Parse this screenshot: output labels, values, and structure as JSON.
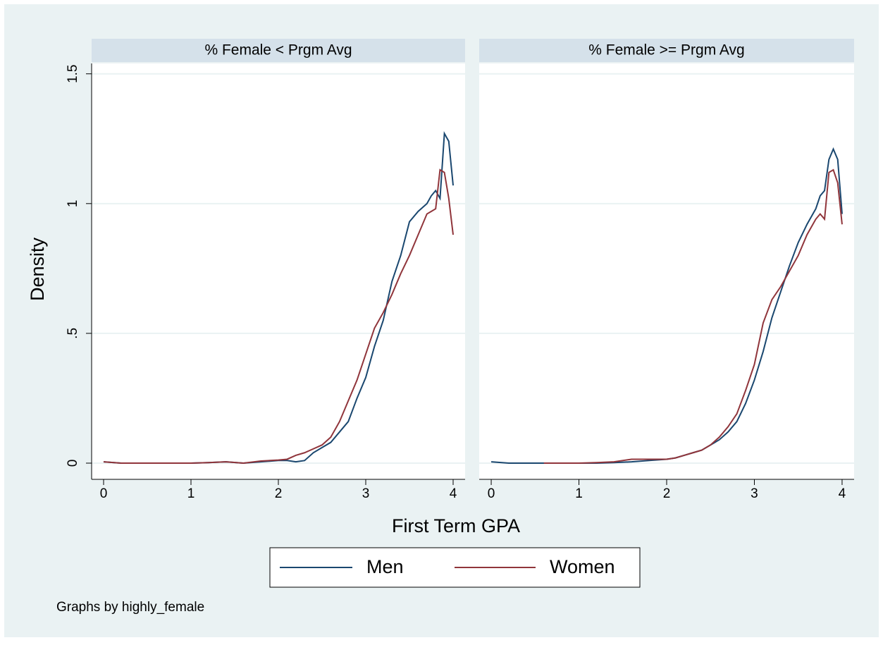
{
  "chart_data": [
    {
      "type": "line",
      "title": "% Female < Prgm Avg",
      "x": [
        0,
        0.2,
        0.4,
        0.6,
        0.8,
        1,
        1.2,
        1.4,
        1.6,
        1.8,
        2,
        2.1,
        2.2,
        2.3,
        2.4,
        2.5,
        2.6,
        2.7,
        2.8,
        2.9,
        3,
        3.1,
        3.2,
        3.3,
        3.4,
        3.5,
        3.6,
        3.7,
        3.75,
        3.8,
        3.85,
        3.9,
        3.95,
        4
      ],
      "series": [
        {
          "name": "Men",
          "color": "#1a476f",
          "values": [
            0.005,
            0,
            0,
            0,
            0,
            0,
            0.002,
            0.005,
            0,
            0.005,
            0.01,
            0.01,
            0.005,
            0.01,
            0.04,
            0.06,
            0.08,
            0.12,
            0.16,
            0.25,
            0.33,
            0.45,
            0.55,
            0.7,
            0.8,
            0.93,
            0.97,
            1.0,
            1.03,
            1.05,
            1.02,
            1.27,
            1.24,
            1.07
          ]
        },
        {
          "name": "Women",
          "color": "#90353b",
          "values": [
            0.005,
            0,
            0,
            0,
            0,
            0,
            0.002,
            0.005,
            0,
            0.008,
            0.012,
            0.015,
            0.03,
            0.04,
            0.055,
            0.07,
            0.1,
            0.16,
            0.24,
            0.32,
            0.42,
            0.52,
            0.58,
            0.65,
            0.73,
            0.8,
            0.88,
            0.96,
            0.97,
            0.98,
            1.13,
            1.12,
            1.02,
            0.88
          ]
        }
      ],
      "xlim": [
        -0.137,
        4.137
      ],
      "xticks": [
        0,
        1,
        2,
        3,
        4
      ],
      "ylim": [
        -0.0625,
        1.54
      ],
      "yticks": [
        0,
        {
          "value": 0.5,
          "label": ".5"
        },
        1,
        1.5
      ],
      "grid": true
    },
    {
      "type": "line",
      "title": "% Female >= Prgm Avg",
      "x": [
        0,
        0.2,
        0.4,
        0.6,
        0.8,
        1,
        1.2,
        1.4,
        1.6,
        1.8,
        2,
        2.1,
        2.2,
        2.3,
        2.4,
        2.5,
        2.6,
        2.7,
        2.8,
        2.9,
        3,
        3.1,
        3.2,
        3.3,
        3.4,
        3.5,
        3.6,
        3.7,
        3.75,
        3.8,
        3.85,
        3.9,
        3.95,
        4
      ],
      "series": [
        {
          "name": "Men",
          "color": "#1a476f",
          "values": [
            0.005,
            0,
            0,
            0,
            0,
            0,
            0,
            0.002,
            0.005,
            0.01,
            0.015,
            0.02,
            0.03,
            0.04,
            0.05,
            0.07,
            0.09,
            0.12,
            0.16,
            0.23,
            0.32,
            0.43,
            0.56,
            0.66,
            0.76,
            0.85,
            0.92,
            0.98,
            1.03,
            1.05,
            1.17,
            1.21,
            1.17,
            0.96
          ]
        },
        {
          "name": "Women",
          "color": "#90353b",
          "values": [
            null,
            null,
            null,
            0,
            0,
            0,
            0.002,
            0.005,
            0.015,
            0.015,
            0.015,
            0.02,
            0.03,
            0.04,
            0.05,
            0.07,
            0.1,
            0.14,
            0.19,
            0.28,
            0.38,
            0.54,
            0.63,
            0.68,
            0.74,
            0.8,
            0.88,
            0.94,
            0.96,
            0.94,
            1.12,
            1.13,
            1.08,
            0.92
          ]
        }
      ],
      "xlim": [
        -0.137,
        4.137
      ],
      "xticks": [
        0,
        1,
        2,
        3,
        4
      ],
      "ylim": [
        -0.0625,
        1.54
      ],
      "grid": true
    }
  ],
  "xlabel": "First Term GPA",
  "ylabel": "Density",
  "note": "Graphs by highly_female"
}
